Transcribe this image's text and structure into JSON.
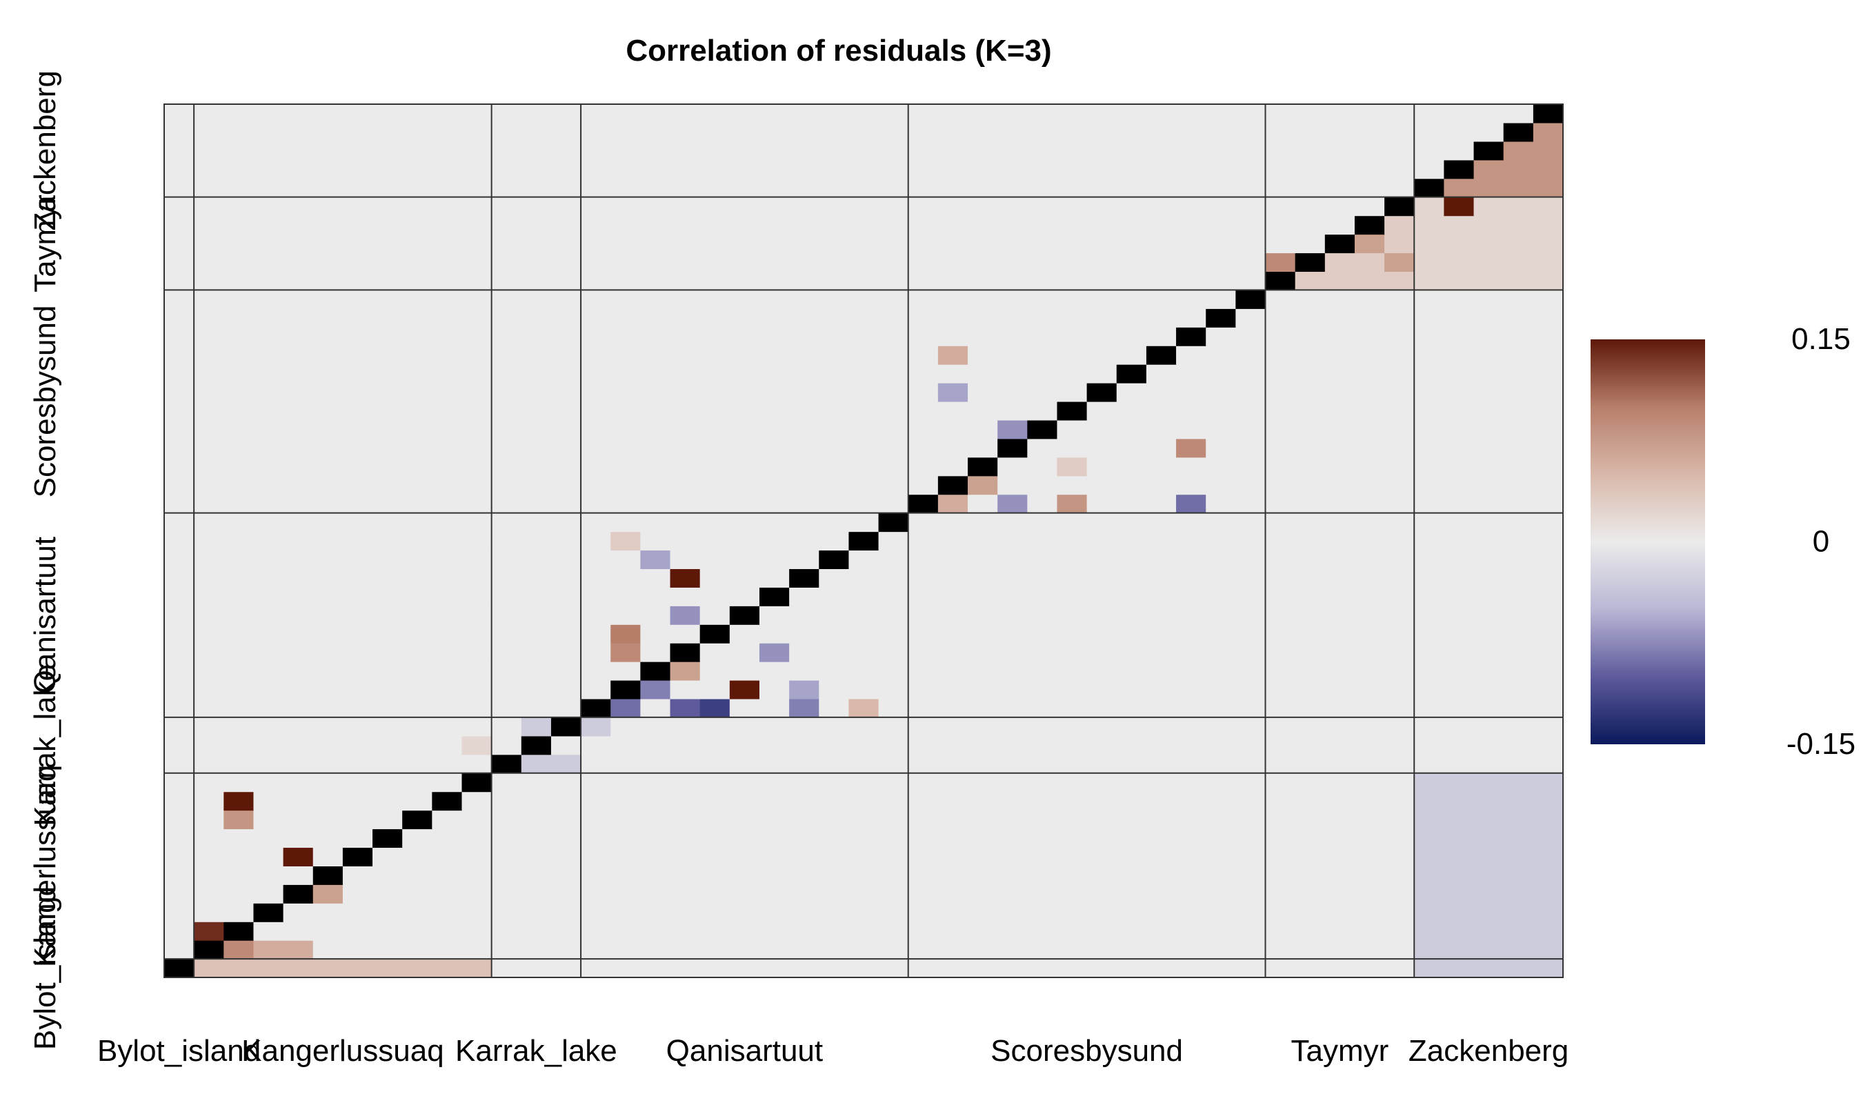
{
  "chart_data": {
    "type": "heatmap",
    "title": "Correlation of residuals (K=3)",
    "groups": [
      {
        "label": "Bylot_island",
        "size": 1
      },
      {
        "label": "Kangerlussuaq",
        "size": 10
      },
      {
        "label": "Karrak_lake",
        "size": 3
      },
      {
        "label": "Qanisartuut",
        "size": 11
      },
      {
        "label": "Scoresbysund",
        "size": 12
      },
      {
        "label": "Taymyr",
        "size": 5
      },
      {
        "label": "Zackenberg",
        "size": 5
      }
    ],
    "colorbar": {
      "min": -0.15,
      "max": 0.15,
      "tick_labels": [
        "0.15",
        "0",
        "-0.15"
      ],
      "colors": [
        "#0a1a5c",
        "#5e5a9c",
        "#b9b7d4",
        "#ebebeb",
        "#d9b8aa",
        "#b77e6a",
        "#5e1808"
      ]
    },
    "diagonal_color": "#000000",
    "background_value": 0,
    "upper_block_values": [
      {
        "row_group": 0,
        "col_group": 1,
        "value": 0.04
      },
      {
        "row_group": 0,
        "col_group": 2,
        "value": 0.0
      },
      {
        "row_group": 0,
        "col_group": 3,
        "value": 0.0
      },
      {
        "row_group": 0,
        "col_group": 4,
        "value": 0.0
      },
      {
        "row_group": 0,
        "col_group": 5,
        "value": 0.0
      },
      {
        "row_group": 0,
        "col_group": 6,
        "value": -0.03
      },
      {
        "row_group": 1,
        "col_group": 6,
        "value": -0.03
      },
      {
        "row_group": 5,
        "col_group": 6,
        "value": 0.02
      },
      {
        "row_group": 6,
        "col_group": 6,
        "value": 0.08
      },
      {
        "row_group": 5,
        "col_group": 5,
        "value": 0.03
      }
    ],
    "cells": [
      {
        "r": 11,
        "c": 12,
        "v": -0.03
      },
      {
        "r": 11,
        "c": 13,
        "v": -0.03
      },
      {
        "r": 12,
        "c": 12,
        "v": -0.03
      },
      {
        "r": 13,
        "c": 12,
        "v": -0.03
      },
      {
        "r": 13,
        "c": 14,
        "v": -0.03
      },
      {
        "r": 12,
        "c": 10,
        "v": 0.02
      },
      {
        "r": 2,
        "c": 1,
        "v": 0.14
      },
      {
        "r": 1,
        "c": 2,
        "v": 0.09
      },
      {
        "r": 1,
        "c": 3,
        "v": 0.06
      },
      {
        "r": 1,
        "c": 4,
        "v": 0.06
      },
      {
        "r": 6,
        "c": 4,
        "v": 0.17
      },
      {
        "r": 9,
        "c": 2,
        "v": 0.17
      },
      {
        "r": 8,
        "c": 2,
        "v": 0.08
      },
      {
        "r": 4,
        "c": 5,
        "v": 0.07
      },
      {
        "r": 5,
        "c": 5,
        "v": 0.07
      },
      {
        "r": 14,
        "c": 15,
        "v": -0.09
      },
      {
        "r": 14,
        "c": 17,
        "v": -0.1
      },
      {
        "r": 14,
        "c": 18,
        "v": -0.12
      },
      {
        "r": 14,
        "c": 21,
        "v": -0.08
      },
      {
        "r": 14,
        "c": 23,
        "v": 0.05
      },
      {
        "r": 15,
        "c": 16,
        "v": -0.08
      },
      {
        "r": 15,
        "c": 19,
        "v": 0.15
      },
      {
        "r": 15,
        "c": 21,
        "v": -0.06
      },
      {
        "r": 16,
        "c": 17,
        "v": 0.07
      },
      {
        "r": 17,
        "c": 15,
        "v": 0.09
      },
      {
        "r": 17,
        "c": 17,
        "v": 0.07
      },
      {
        "r": 17,
        "c": 20,
        "v": -0.07
      },
      {
        "r": 18,
        "c": 15,
        "v": 0.1
      },
      {
        "r": 19,
        "c": 17,
        "v": -0.07
      },
      {
        "r": 21,
        "c": 17,
        "v": 0.15
      },
      {
        "r": 22,
        "c": 16,
        "v": -0.06
      },
      {
        "r": 23,
        "c": 15,
        "v": 0.03
      },
      {
        "r": 25,
        "c": 26,
        "v": 0.06
      },
      {
        "r": 25,
        "c": 28,
        "v": -0.07
      },
      {
        "r": 25,
        "c": 30,
        "v": 0.08
      },
      {
        "r": 25,
        "c": 34,
        "v": -0.09
      },
      {
        "r": 26,
        "c": 27,
        "v": 0.07
      },
      {
        "r": 27,
        "c": 30,
        "v": 0.03
      },
      {
        "r": 28,
        "c": 34,
        "v": 0.09
      },
      {
        "r": 29,
        "c": 28,
        "v": -0.07
      },
      {
        "r": 31,
        "c": 26,
        "v": -0.06
      },
      {
        "r": 33,
        "c": 26,
        "v": 0.06
      },
      {
        "r": 38,
        "c": 37,
        "v": 0.09
      },
      {
        "r": 41,
        "c": 43,
        "v": 0.15
      },
      {
        "r": 38,
        "c": 41,
        "v": 0.07
      },
      {
        "r": 39,
        "c": 40,
        "v": 0.07
      }
    ]
  }
}
